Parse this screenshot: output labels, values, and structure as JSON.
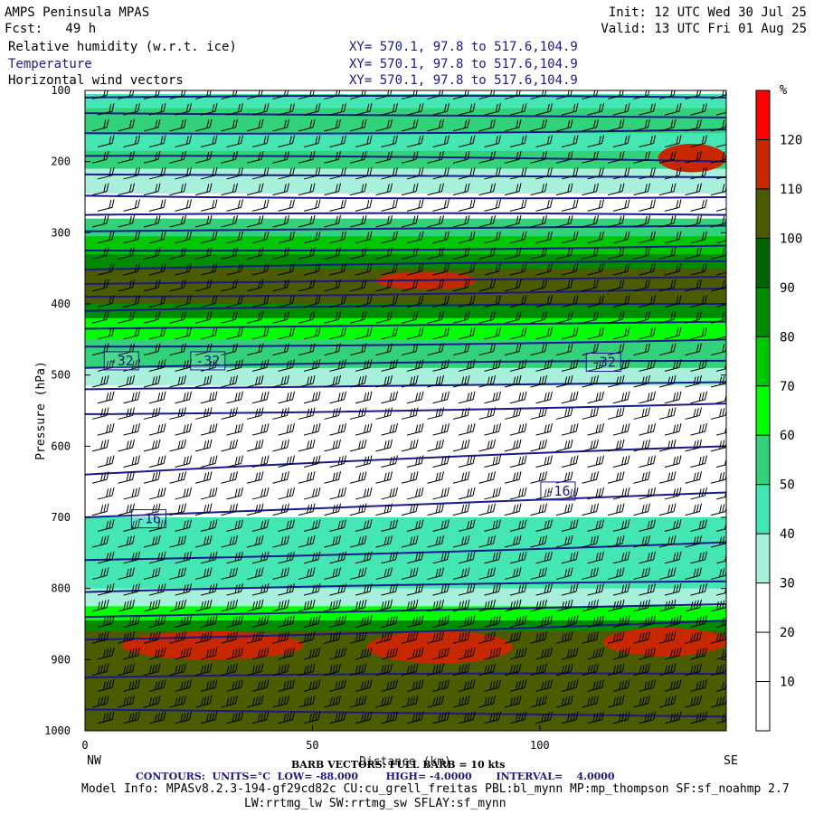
{
  "header": {
    "title": "AMPS Peninsula MPAS",
    "init": "Init: 12 UTC Wed 30 Jul 25",
    "fcst": "Fcst:   49 h",
    "valid": "Valid: 13 UTC Fri 01 Aug 25",
    "rows": [
      {
        "field": "Relative humidity (w.r.t. ice)",
        "xy": "XY= 570.1, 97.8 to 517.6,104.9"
      },
      {
        "field": "Temperature",
        "xy": "XY= 570.1, 97.8 to 517.6,104.9"
      },
      {
        "field": "Horizontal wind vectors",
        "xy": "XY= 570.1, 97.8 to 517.6,104.9"
      }
    ]
  },
  "footer": {
    "barb_line": "BARB VECTORS: FULL BARB = 10 kts",
    "contours_line": "CONTOURS:  UNITS=°C  LOW= -88.000        HIGH= -4.0000       INTERVAL=    4.0000",
    "model_info": "Model Info: MPASv8.2.3-194-gf29cd82c CU:cu_grell_freitas PBL:bl_mynn MP:mp_thompson SF:sf_noahmp 2.7",
    "model_info2": "LW:rrtmg_lw SW:rrtmg_sw SFLAY:sf_mynn"
  },
  "colors": {
    "rh_bins": [
      "#ffffff",
      "#ffffff",
      "#ffffff",
      "#a8f0dc",
      "#44e6b4",
      "#32d27a",
      "#00ff00",
      "#00c800",
      "#008c00",
      "#006400",
      "#4b5b00",
      "#c82800",
      "#ff0000"
    ],
    "contour": "#1a1a8c",
    "barb": "#000000"
  },
  "chart_data": {
    "type": "heatmap",
    "xlabel": "Distance (km)",
    "ylabel": "Pressure (hPa)",
    "xlim": [
      0,
      141
    ],
    "ylim": [
      1000,
      100
    ],
    "x_ticks": [
      "0",
      "50",
      "100"
    ],
    "y_ticks": [
      "100",
      "200",
      "300",
      "400",
      "500",
      "600",
      "700",
      "800",
      "900",
      "1000"
    ],
    "left_end": "NW",
    "right_end": "SE",
    "colorbar": {
      "unit": "%",
      "levels": [
        "10",
        "20",
        "30",
        "40",
        "50",
        "60",
        "70",
        "80",
        "90",
        "100",
        "110",
        "120"
      ]
    },
    "rh_layers": [
      {
        "p": [
          105,
          125
        ],
        "rh": 45
      },
      {
        "p": [
          125,
          160
        ],
        "rh": 55
      },
      {
        "p": [
          160,
          185
        ],
        "rh": 40
      },
      {
        "p": [
          185,
          210
        ],
        "rh": 50
      },
      {
        "p": [
          210,
          245
        ],
        "rh": 35
      },
      {
        "p": [
          245,
          280
        ],
        "rh": 20
      },
      {
        "p": [
          280,
          305
        ],
        "rh": 50
      },
      {
        "p": [
          305,
          330
        ],
        "rh": 70
      },
      {
        "p": [
          330,
          350
        ],
        "rh": 85
      },
      {
        "p": [
          350,
          400
        ],
        "rh": 100
      },
      {
        "p": [
          400,
          420
        ],
        "rh": 85
      },
      {
        "p": [
          420,
          450
        ],
        "rh": 65
      },
      {
        "p": [
          450,
          490
        ],
        "rh": 50
      },
      {
        "p": [
          490,
          515
        ],
        "rh": 35
      },
      {
        "p": [
          515,
          620
        ],
        "rh": 15
      },
      {
        "p": [
          620,
          700
        ],
        "rh": 25
      },
      {
        "p": [
          700,
          760
        ],
        "rh": 40
      },
      {
        "p": [
          760,
          800
        ],
        "rh": 45
      },
      {
        "p": [
          800,
          825
        ],
        "rh": 35
      },
      {
        "p": [
          825,
          845
        ],
        "rh": 65
      },
      {
        "p": [
          845,
          860
        ],
        "rh": 85
      },
      {
        "p": [
          860,
          1000
        ],
        "rh": 105
      }
    ],
    "rh_patches": [
      {
        "x": [
          64,
          86
        ],
        "p": [
          355,
          380
        ],
        "rh": 115
      },
      {
        "x": [
          8,
          48
        ],
        "p": [
          860,
          900
        ],
        "rh": 115
      },
      {
        "x": [
          62,
          94
        ],
        "p": [
          860,
          905
        ],
        "rh": 115
      },
      {
        "x": [
          114,
          141
        ],
        "p": [
          855,
          895
        ],
        "rh": 115
      },
      {
        "x": [
          126,
          141
        ],
        "p": [
          175,
          215
        ],
        "rh": 115
      },
      {
        "x": [
          0,
          141
        ],
        "p": [
          920,
          1000
        ],
        "rh": 100
      }
    ],
    "temperature_contours": [
      {
        "x": [
          0,
          141
        ],
        "p": [
          110,
          110
        ]
      },
      {
        "x": [
          0,
          141
        ],
        "p": [
          132,
          138
        ]
      },
      {
        "x": [
          0,
          141
        ],
        "p": [
          160,
          155
        ]
      },
      {
        "x": [
          0,
          141
        ],
        "p": [
          192,
          200
        ]
      },
      {
        "x": [
          0,
          141
        ],
        "p": [
          218,
          222
        ]
      },
      {
        "x": [
          0,
          141
        ],
        "p": [
          248,
          250
        ]
      },
      {
        "x": [
          0,
          141
        ],
        "p": [
          275,
          275
        ]
      },
      {
        "x": [
          0,
          141
        ],
        "p": [
          298,
          290
        ]
      },
      {
        "x": [
          0,
          141
        ],
        "p": [
          325,
          318
        ]
      },
      {
        "x": [
          0,
          141
        ],
        "p": [
          352,
          340
        ]
      },
      {
        "x": [
          0,
          141
        ],
        "p": [
          372,
          362
        ]
      },
      {
        "x": [
          0,
          141
        ],
        "p": [
          390,
          378
        ]
      },
      {
        "x": [
          0,
          141
        ],
        "p": [
          410,
          400
        ]
      },
      {
        "x": [
          0,
          141
        ],
        "p": [
          435,
          425
        ]
      },
      {
        "x": [
          0,
          141
        ],
        "p": [
          460,
          450
        ]
      },
      {
        "x": [
          0,
          141
        ],
        "p": [
          490,
          480
        ]
      },
      {
        "x": [
          0,
          141
        ],
        "p": [
          520,
          510
        ]
      },
      {
        "x": [
          0,
          141
        ],
        "p": [
          555,
          540
        ]
      },
      {
        "x": [
          0,
          141
        ],
        "p": [
          640,
          600
        ]
      },
      {
        "x": [
          0,
          141
        ],
        "p": [
          700,
          665
        ]
      },
      {
        "x": [
          0,
          141
        ],
        "p": [
          760,
          735
        ]
      },
      {
        "x": [
          0,
          141
        ],
        "p": [
          805,
          790
        ]
      },
      {
        "x": [
          0,
          141
        ],
        "p": [
          840,
          822
        ]
      },
      {
        "x": [
          0,
          141
        ],
        "p": [
          872,
          845
        ]
      },
      {
        "x": [
          0,
          141
        ],
        "p": [
          925,
          920
        ]
      },
      {
        "x": [
          0,
          141
        ],
        "p": [
          970,
          980
        ]
      }
    ],
    "contour_labels": [
      {
        "text": "-32",
        "x": 8,
        "p": 480
      },
      {
        "text": "-32",
        "x": 27,
        "p": 480
      },
      {
        "text": "-32",
        "x": 114,
        "p": 482
      },
      {
        "text": "-16",
        "x": 104,
        "p": 663
      },
      {
        "text": "-16",
        "x": 14,
        "p": 702
      }
    ]
  }
}
